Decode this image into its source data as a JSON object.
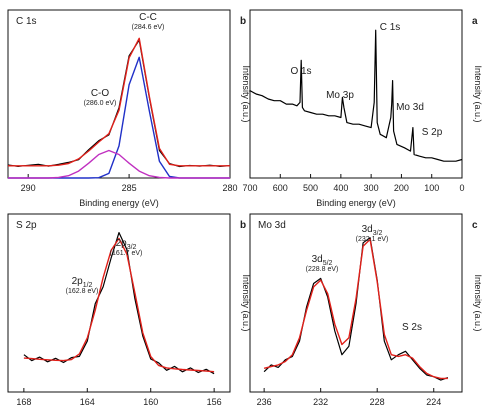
{
  "chart_data": [
    {
      "type": "line",
      "title": "C 1s",
      "panel_label": "b",
      "xlabel": "Binding energy (eV)",
      "ylabel": "Intensity (a.u.)",
      "x": [
        291,
        290.5,
        290,
        289.5,
        289,
        288.5,
        288,
        287.5,
        287,
        286.5,
        286,
        285.5,
        285,
        284.5,
        284,
        283.5,
        283,
        282.5,
        282,
        281.5,
        281,
        280.5,
        280
      ],
      "series": [
        {
          "color": "#000000",
          "values": [
            8.5,
            7.6,
            8.3,
            9,
            7.8,
            8.9,
            10.2,
            12,
            18.5,
            24.4,
            28.2,
            46,
            80,
            90.3,
            52.8,
            18,
            9.4,
            7.5,
            8.2,
            7.8,
            8.4,
            7.6,
            8.1
          ]
        },
        {
          "color": "#e0201a",
          "values": [
            8,
            8,
            8,
            8,
            8,
            8.4,
            9.5,
            12.5,
            17.7,
            23.6,
            29,
            44.4,
            78.7,
            91.5,
            53.5,
            19.4,
            9,
            8,
            8,
            8,
            8,
            8,
            8
          ]
        },
        {
          "color": "#2030c8",
          "values": [
            0,
            0,
            0,
            0,
            0,
            0,
            0,
            0,
            0,
            0.2,
            3,
            21,
            61,
            79,
            44,
            11,
            1,
            0,
            0,
            0,
            0,
            0,
            0
          ]
        },
        {
          "color": "#c030c0",
          "values": [
            0,
            0,
            0,
            0,
            0,
            0.4,
            1.5,
            4.5,
            9.7,
            15.4,
            18,
            15.4,
            9.7,
            4.5,
            1.5,
            0.4,
            0,
            0,
            0,
            0,
            0,
            0,
            0
          ]
        }
      ],
      "xlim": [
        291,
        280
      ],
      "xticks": [
        290,
        285,
        280
      ],
      "ylim": [
        0,
        110
      ],
      "annotations": [
        {
          "text": "C-C",
          "note": "(284.6 eV)"
        },
        {
          "text": "C-O",
          "note": "(286.0 eV)"
        }
      ]
    },
    {
      "type": "line",
      "panel_label": "a",
      "xlabel": "Binding energy (eV)",
      "ylabel": "Intensity (a.u.)",
      "x": [
        700,
        680,
        660,
        640,
        620,
        600,
        580,
        560,
        545,
        535,
        531,
        527,
        520,
        500,
        480,
        460,
        440,
        420,
        400,
        395,
        390,
        380,
        360,
        340,
        320,
        300,
        290,
        285,
        280,
        270,
        250,
        235,
        232,
        229,
        226,
        215,
        190,
        170,
        162,
        158,
        140,
        120,
        100,
        80,
        60,
        40,
        20,
        0
      ],
      "series": [
        {
          "color": "#000000",
          "values": [
            52,
            50,
            49,
            47,
            46,
            46,
            44,
            44,
            43,
            45,
            70,
            42,
            40,
            39,
            38,
            38,
            37,
            37,
            36,
            48,
            42,
            33,
            32,
            32,
            31,
            30,
            45,
            88,
            33,
            26,
            24,
            36,
            44,
            58,
            28,
            20,
            18,
            16,
            30,
            14,
            13,
            12,
            12,
            11,
            10,
            10,
            10,
            11
          ]
        }
      ],
      "xlim": [
        700,
        0
      ],
      "xticks": [
        700,
        600,
        500,
        400,
        300,
        200,
        100,
        0
      ],
      "ylim": [
        0,
        100
      ],
      "annotations": [
        {
          "text": "C 1s"
        },
        {
          "text": "O 1s"
        },
        {
          "text": "Mo 3p"
        },
        {
          "text": "Mo 3d"
        },
        {
          "text": "S 2p"
        }
      ]
    },
    {
      "type": "line",
      "title": "S  2p",
      "panel_label": "b",
      "ylabel": "Intensity (a.u.)",
      "x": [
        168,
        167.5,
        167,
        166.5,
        166,
        165.5,
        165,
        164.5,
        164,
        163.5,
        163,
        162.5,
        162,
        161.5,
        161,
        160.5,
        160,
        159.5,
        159,
        158.5,
        158,
        157.5,
        157,
        156.5,
        156
      ],
      "series": [
        {
          "color": "#000000",
          "values": [
            22,
            18.5,
            20.6,
            17.8,
            19.9,
            17.4,
            20.3,
            21,
            30,
            52,
            62,
            79,
            94,
            84,
            55,
            33,
            19.5,
            17.2,
            12.8,
            15.1,
            11.9,
            14.2,
            11.5,
            13.4,
            10.8
          ]
        },
        {
          "color": "#e0201a",
          "values": [
            20,
            19.7,
            19.3,
            19,
            18.7,
            18.5,
            19.1,
            22.5,
            31.9,
            48.2,
            67.4,
            83.5,
            90.6,
            81.3,
            58.4,
            34.9,
            21,
            15.7,
            14.2,
            13.7,
            13.3,
            13,
            12.7,
            12.3,
            12
          ]
        }
      ],
      "xlim": [
        169,
        155
      ],
      "xticks": [
        168,
        164,
        160,
        156
      ],
      "ylim": [
        0,
        105
      ],
      "annotations": [
        {
          "text": "2p",
          "sub": "3/2",
          "note": "(161.7 eV)"
        },
        {
          "text": "2p",
          "sub": "1/2",
          "note": "(162.8 eV)"
        }
      ]
    },
    {
      "type": "line",
      "title": "Mo 3d",
      "panel_label": "c",
      "ylabel": "Intensity (a.u.)",
      "x": [
        236,
        235.5,
        235,
        234.5,
        234,
        233.5,
        233,
        232.5,
        232,
        231.5,
        231,
        230.5,
        230,
        229.5,
        229,
        228.5,
        228,
        227.5,
        227,
        226.5,
        226,
        225.5,
        225,
        224.5,
        224,
        223.5,
        223
      ],
      "series": [
        {
          "color": "#000000",
          "values": [
            12,
            16,
            14.5,
            19,
            21,
            30,
            50,
            64,
            67,
            56,
            36,
            22,
            27,
            52,
            88,
            91,
            66,
            30,
            19,
            22,
            24,
            19,
            14,
            10,
            9,
            7,
            8.5
          ]
        },
        {
          "color": "#e0201a",
          "values": [
            14,
            15,
            16,
            18,
            22,
            32,
            48,
            62,
            66,
            58,
            40,
            28,
            32,
            55,
            86,
            90,
            65,
            34,
            22,
            21,
            22,
            20,
            15,
            11,
            9,
            8,
            8
          ]
        }
      ],
      "xlim": [
        237,
        222
      ],
      "xticks": [
        236,
        232,
        228,
        224
      ],
      "ylim": [
        0,
        105
      ],
      "annotations": [
        {
          "text": "3d",
          "sub": "3/2",
          "note": "(232.1 eV)"
        },
        {
          "text": "3d",
          "sub": "5/2",
          "note": "(228.8 eV)"
        },
        {
          "text": "S 2s"
        }
      ]
    }
  ]
}
